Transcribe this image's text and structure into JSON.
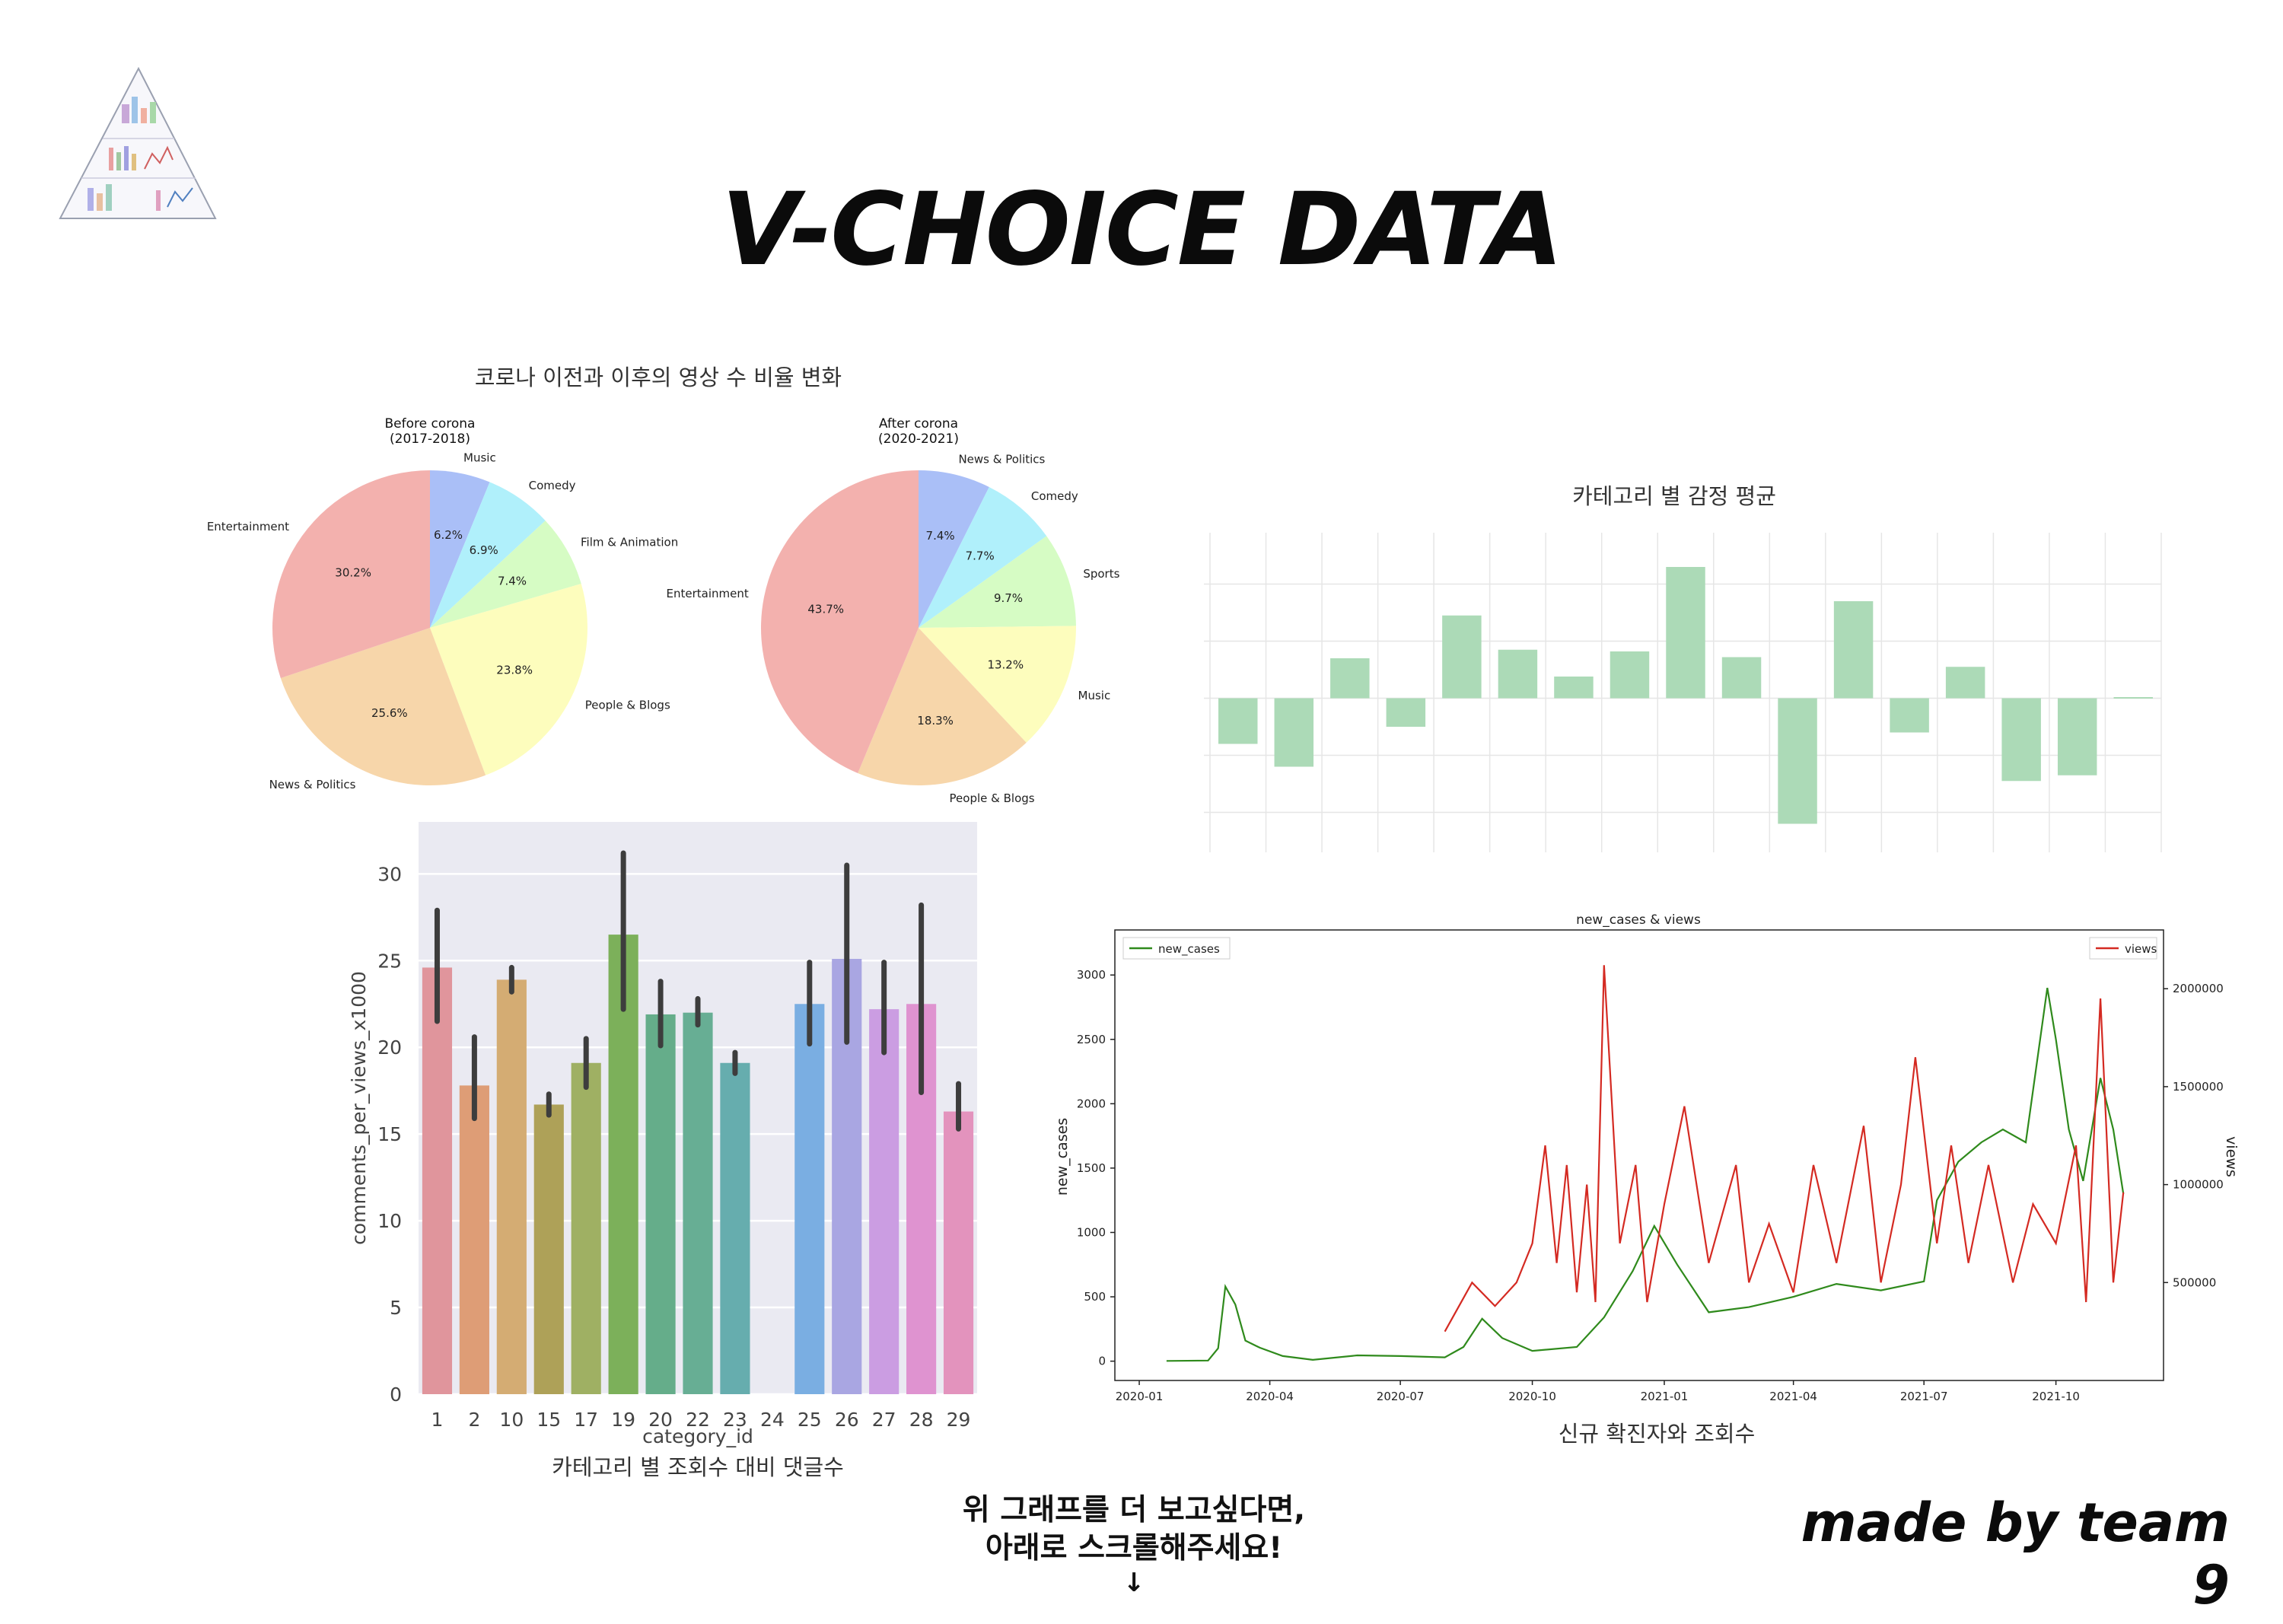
{
  "page": {
    "title": "V-CHOICE DATA",
    "credit": "made by team 9",
    "scroll_hint_line1": "위 그래프를 더 보고싶다면,",
    "scroll_hint_line2": "아래로 스크롤해주세요!",
    "scroll_hint_arrow": "↓",
    "logo_icon": "pyramid-chart-collage"
  },
  "chart_data": [
    {
      "id": "pies",
      "type": "pie",
      "title": "코로나 이전과 이후의 영상 수 비율 변화",
      "pies": [
        {
          "title_line1": "Before corona",
          "title_line2": "(2017-2018)",
          "slices": [
            {
              "label": "Music",
              "value": 6.2,
              "pct_label": "6.2%",
              "color": "#aabff7"
            },
            {
              "label": "Comedy",
              "value": 6.9,
              "pct_label": "6.9%",
              "color": "#b0f0fb"
            },
            {
              "label": "Film & Animation",
              "value": 7.4,
              "pct_label": "7.4%",
              "color": "#d6fcc4"
            },
            {
              "label": "People & Blogs",
              "value": 23.8,
              "pct_label": "23.8%",
              "color": "#fdfdbd"
            },
            {
              "label": "News & Politics",
              "value": 25.6,
              "pct_label": "25.6%",
              "color": "#f7d6aa"
            },
            {
              "label": "Entertainment",
              "value": 30.2,
              "pct_label": "30.2%",
              "color": "#f3b1ae"
            }
          ]
        },
        {
          "title_line1": "After corona",
          "title_line2": "(2020-2021)",
          "slices": [
            {
              "label": "News & Politics",
              "value": 7.4,
              "pct_label": "7.4%",
              "color": "#aabff7"
            },
            {
              "label": "Comedy",
              "value": 7.7,
              "pct_label": "7.7%",
              "color": "#b0f0fb"
            },
            {
              "label": "Sports",
              "value": 9.7,
              "pct_label": "9.7%",
              "color": "#d6fcc4"
            },
            {
              "label": "Music",
              "value": 13.2,
              "pct_label": "13.2%",
              "color": "#fdfdbd"
            },
            {
              "label": "People & Blogs",
              "value": 18.3,
              "pct_label": "18.3%",
              "color": "#f7d6aa"
            },
            {
              "label": "Entertainment",
              "value": 43.7,
              "pct_label": "43.7%",
              "color": "#f3b1ae"
            }
          ]
        }
      ]
    },
    {
      "id": "sentiment",
      "type": "bar",
      "title": "카테고리 별 감정 평균",
      "values": [
        -0.08,
        -0.12,
        0.07,
        -0.05,
        0.145,
        0.085,
        0.038,
        0.082,
        0.23,
        0.072,
        -0.22,
        0.17,
        -0.06,
        0.055,
        -0.145,
        -0.135,
        0.002
      ],
      "ylim": [
        -0.27,
        0.29
      ],
      "color": "#acdab7"
    },
    {
      "id": "comments",
      "type": "bar",
      "caption": "카테고리 별 조회수 대비 댓글수",
      "xlabel": "category_id",
      "ylabel": "comments_per_views_x1000",
      "ylim": [
        0,
        33
      ],
      "yticks": [
        0,
        5,
        10,
        15,
        20,
        25,
        30
      ],
      "categories": [
        "1",
        "2",
        "10",
        "15",
        "17",
        "19",
        "20",
        "22",
        "23",
        "24",
        "25",
        "26",
        "27",
        "28",
        "29"
      ],
      "values": [
        24.6,
        17.8,
        23.9,
        16.7,
        19.1,
        26.5,
        21.9,
        22.0,
        19.1,
        null,
        22.5,
        25.1,
        22.2,
        22.5,
        16.3
      ],
      "ci_low": [
        21.5,
        15.9,
        23.2,
        16.1,
        17.7,
        22.2,
        20.1,
        21.3,
        18.5,
        null,
        20.2,
        20.3,
        19.7,
        17.4,
        15.3
      ],
      "ci_high": [
        27.9,
        20.6,
        24.6,
        17.3,
        20.5,
        31.2,
        23.8,
        22.8,
        19.7,
        null,
        24.9,
        30.5,
        24.9,
        28.2,
        17.9
      ],
      "colors": [
        "#e0959c",
        "#de9d76",
        "#d4ac73",
        "#aea158",
        "#9fb063",
        "#7cb05a",
        "#65ad8a",
        "#67ae94",
        "#66adae",
        "#77aac8",
        "#7aaee2",
        "#a9a6e2",
        "#cb9de2",
        "#df93d0",
        "#e393bd"
      ]
    },
    {
      "id": "cases_views",
      "type": "line",
      "title": "new_cases & views",
      "caption": "신규 확진자와 조회수",
      "ylabel_left": "new_cases",
      "ylabel_right": "views",
      "ylim_left": [
        -150,
        3350
      ],
      "yticks_left": [
        0,
        500,
        1000,
        1500,
        2000,
        2500,
        3000
      ],
      "ylim_right": [
        0,
        2300000
      ],
      "yticks_right": [
        500000,
        1000000,
        1500000,
        2000000
      ],
      "ytick_labels_right": [
        "500000",
        "1000000",
        "1500000",
        "2000000"
      ],
      "xlim": [
        "2019-12-15",
        "2021-12-15"
      ],
      "xticks": [
        "2020-01",
        "2020-04",
        "2020-07",
        "2020-10",
        "2021-01",
        "2021-04",
        "2021-07",
        "2021-10"
      ],
      "series": [
        {
          "name": "new_cases",
          "color": "#2f8a1c",
          "dates": [
            "2020-01-20",
            "2020-02-18",
            "2020-02-25",
            "2020-03-01",
            "2020-03-08",
            "2020-03-15",
            "2020-03-25",
            "2020-04-10",
            "2020-05-01",
            "2020-06-01",
            "2020-07-01",
            "2020-08-01",
            "2020-08-14",
            "2020-08-27",
            "2020-09-10",
            "2020-10-01",
            "2020-11-01",
            "2020-11-20",
            "2020-12-10",
            "2020-12-25",
            "2021-01-10",
            "2021-02-01",
            "2021-03-01",
            "2021-04-01",
            "2021-05-01",
            "2021-06-01",
            "2021-07-01",
            "2021-07-10",
            "2021-07-25",
            "2021-08-10",
            "2021-08-25",
            "2021-09-10",
            "2021-09-25",
            "2021-10-01",
            "2021-10-10",
            "2021-10-20",
            "2021-11-01",
            "2021-11-10",
            "2021-11-17"
          ],
          "values": [
            2,
            5,
            100,
            580,
            440,
            160,
            105,
            40,
            10,
            45,
            40,
            30,
            110,
            330,
            180,
            80,
            110,
            340,
            700,
            1050,
            750,
            380,
            420,
            500,
            600,
            550,
            620,
            1250,
            1550,
            1700,
            1800,
            1700,
            2900,
            2500,
            1800,
            1400,
            2200,
            1800,
            1300
          ]
        },
        {
          "name": "views",
          "color": "#d42a22",
          "dates": [
            "2020-08-01",
            "2020-08-20",
            "2020-09-05",
            "2020-09-20",
            "2020-10-01",
            "2020-10-10",
            "2020-10-18",
            "2020-10-25",
            "2020-11-01",
            "2020-11-08",
            "2020-11-14",
            "2020-11-20",
            "2020-12-01",
            "2020-12-12",
            "2020-12-20",
            "2021-01-01",
            "2021-01-15",
            "2021-02-01",
            "2021-02-20",
            "2021-03-01",
            "2021-03-15",
            "2021-04-01",
            "2021-04-15",
            "2021-05-01",
            "2021-05-20",
            "2021-06-01",
            "2021-06-15",
            "2021-06-25",
            "2021-07-10",
            "2021-07-20",
            "2021-08-01",
            "2021-08-15",
            "2021-09-01",
            "2021-09-15",
            "2021-10-01",
            "2021-10-15",
            "2021-10-22",
            "2021-11-01",
            "2021-11-10",
            "2021-11-17"
          ],
          "values": [
            250000,
            500000,
            380000,
            500000,
            700000,
            1200000,
            600000,
            1100000,
            450000,
            1000000,
            400000,
            2120000,
            700000,
            1100000,
            400000,
            900000,
            1400000,
            600000,
            1100000,
            500000,
            800000,
            450000,
            1100000,
            600000,
            1300000,
            500000,
            1000000,
            1650000,
            700000,
            1200000,
            600000,
            1100000,
            500000,
            900000,
            700000,
            1200000,
            400000,
            1950000,
            500000,
            960000
          ]
        }
      ]
    }
  ]
}
